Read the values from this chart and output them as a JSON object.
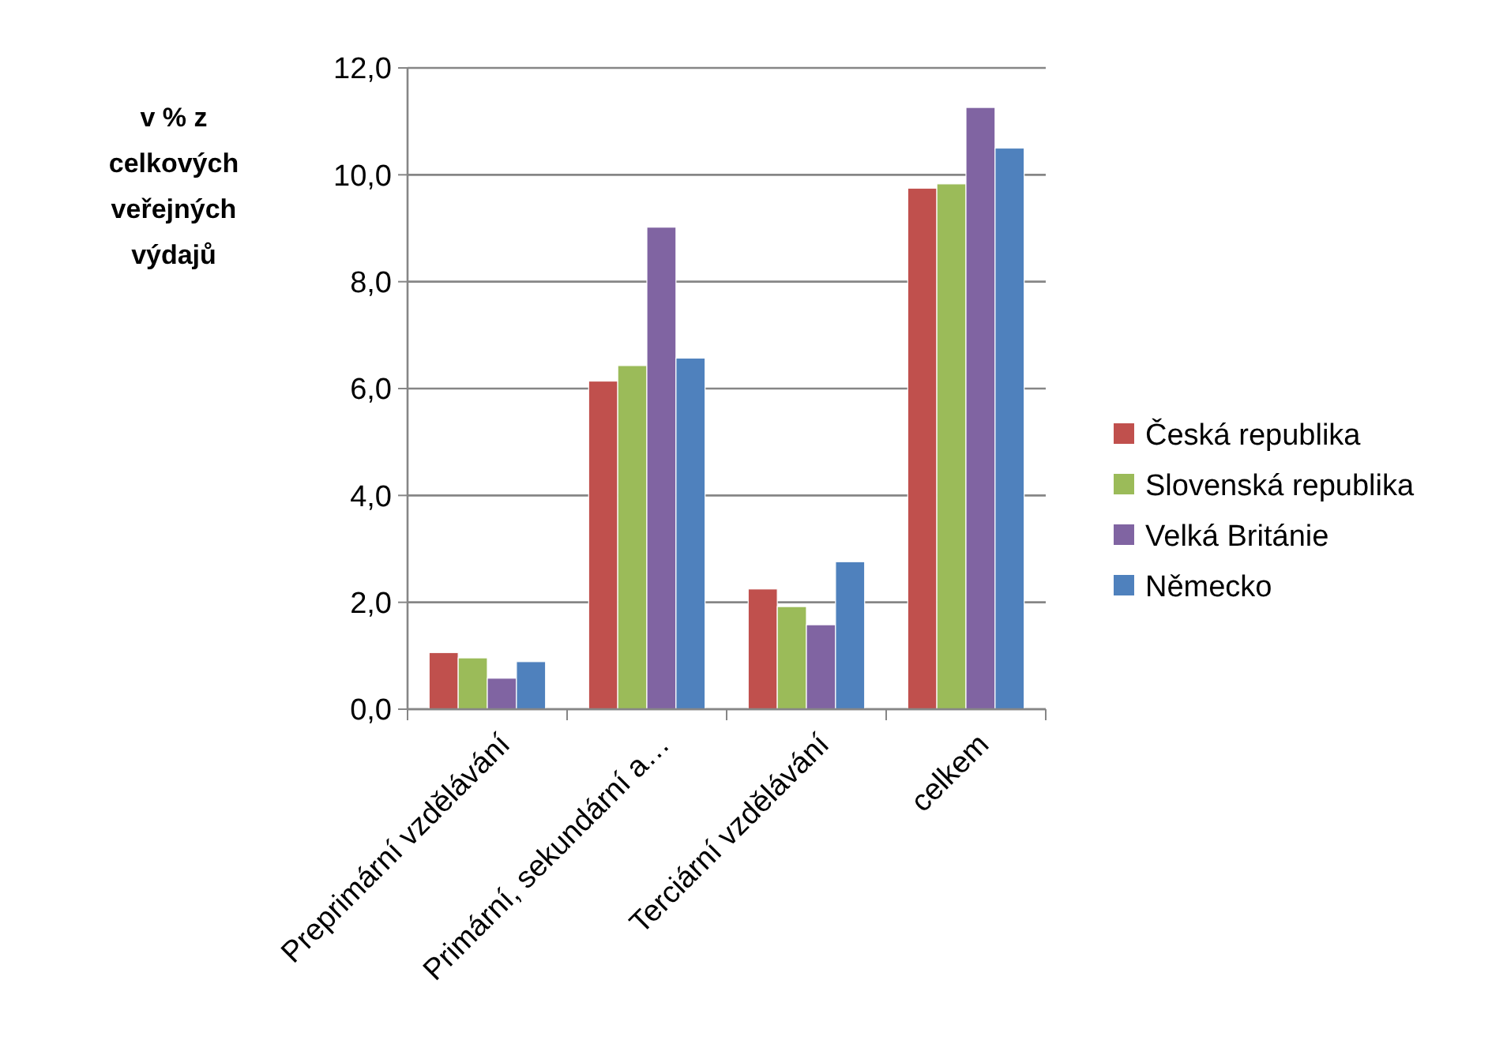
{
  "chart_data": {
    "type": "bar",
    "ylabel": "v  % z celkových veřejných výdajů",
    "categories": [
      "Preprimární vzdělávání",
      "Primární, sekundární a…",
      "Terciární vzdělávání",
      "celkem"
    ],
    "series": [
      {
        "name": "Česká republika",
        "color": "#c0504d",
        "values": [
          1.06,
          6.14,
          2.25,
          9.75
        ]
      },
      {
        "name": "Slovenská republika",
        "color": "#9bbb59",
        "values": [
          0.96,
          6.43,
          1.92,
          9.83
        ]
      },
      {
        "name": "Velká Británie",
        "color": "#8064a2",
        "values": [
          0.58,
          9.02,
          1.58,
          11.26
        ]
      },
      {
        "name": "Německo",
        "color": "#4f81bd",
        "values": [
          0.89,
          6.57,
          2.76,
          10.5
        ]
      }
    ],
    "ylim": [
      0,
      12
    ],
    "yticks": [
      {
        "value": 0,
        "label": "0,0"
      },
      {
        "value": 2,
        "label": "2,0"
      },
      {
        "value": 4,
        "label": "4,0"
      },
      {
        "value": 6,
        "label": "6,0"
      },
      {
        "value": 8,
        "label": "8,0"
      },
      {
        "value": 10,
        "label": "10,0"
      },
      {
        "value": 12,
        "label": "12,0"
      }
    ],
    "grid": "y",
    "legend": "right"
  }
}
